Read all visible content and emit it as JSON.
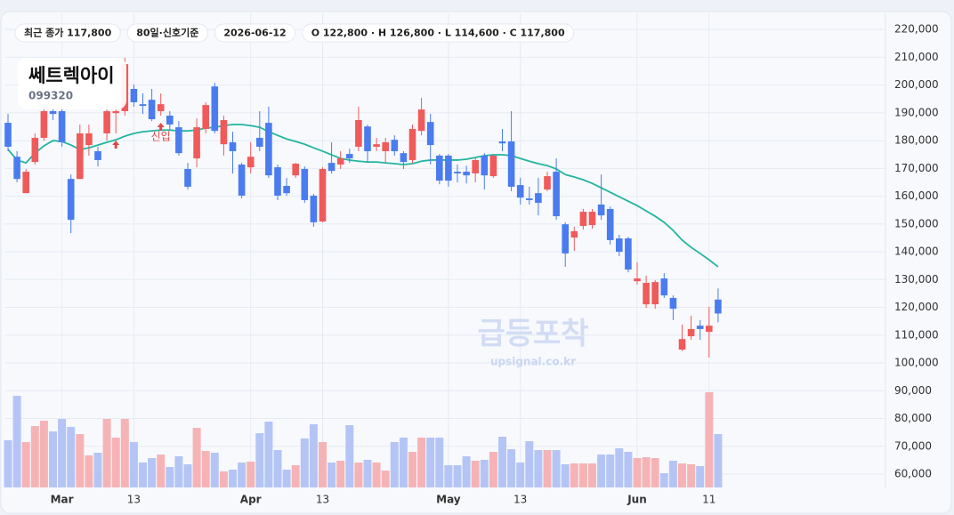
{
  "chart_data": {
    "type": "candlestick",
    "title": "쎄트렉아이",
    "subtitle": "099320",
    "badges": [
      "최근 종가 117,800",
      "80일·신호기준",
      "2026-06-12",
      "O 122,800 · H 126,800 · L 114,600 · C 117,800"
    ],
    "watermark": "급등포착",
    "watermark_sub": "upsignal.co.kr",
    "up_color": "#f05a5a",
    "down_color": "#4a7cf0",
    "up_volume_color": "#f6b3b6",
    "down_volume_color": "#b4c5f5",
    "ma_color": "#22b5a0",
    "grid": true,
    "annotations": [
      {
        "index": 17,
        "text": "신입"
      }
    ],
    "signals": [
      12,
      17
    ],
    "ylim": [
      55200,
      225800
    ],
    "yticks": [
      {
        "value": 60000,
        "label": "60,000"
      },
      {
        "value": 70000,
        "label": "70,000"
      },
      {
        "value": 80000,
        "label": "80,000"
      },
      {
        "value": 90000,
        "label": "90,000"
      },
      {
        "value": 100000,
        "label": "100,000"
      },
      {
        "value": 110000,
        "label": "110,000"
      },
      {
        "value": 120000,
        "label": "120,000"
      },
      {
        "value": 130000,
        "label": "130,000"
      },
      {
        "value": 140000,
        "label": "140,000"
      },
      {
        "value": 150000,
        "label": "150,000"
      },
      {
        "value": 160000,
        "label": "160,000"
      },
      {
        "value": 170000,
        "label": "170,000"
      },
      {
        "value": 180000,
        "label": "180,000"
      },
      {
        "value": 190000,
        "label": "190,000"
      },
      {
        "value": 200000,
        "label": "200,000"
      },
      {
        "value": 210000,
        "label": "210,000"
      },
      {
        "value": 220000,
        "label": "220,000"
      }
    ],
    "categories": [
      null,
      null,
      null,
      null,
      null,
      null,
      "Mar",
      null,
      null,
      null,
      null,
      null,
      null,
      null,
      "13",
      null,
      null,
      null,
      null,
      null,
      null,
      null,
      null,
      null,
      null,
      null,
      null,
      "Apr",
      null,
      null,
      null,
      null,
      null,
      null,
      null,
      "13",
      null,
      null,
      null,
      null,
      null,
      null,
      null,
      null,
      null,
      null,
      null,
      null,
      null,
      "May",
      null,
      null,
      null,
      null,
      null,
      null,
      null,
      "13",
      null,
      null,
      null,
      null,
      null,
      null,
      null,
      null,
      null,
      null,
      null,
      null,
      "Jun",
      null,
      null,
      null,
      null,
      null,
      null,
      null,
      "11",
      null
    ],
    "open": [
      186400,
      174200,
      161100,
      172300,
      181000,
      190600,
      190600,
      166200,
      166200,
      178400,
      176200,
      182600,
      189900,
      190600,
      198600,
      193100,
      194700,
      190600,
      189000,
      184800,
      169800,
      173600,
      184200,
      199500,
      178700,
      179400,
      171400,
      170400,
      181000,
      186400,
      170400,
      163700,
      167500,
      169800,
      160200,
      150900,
      172000,
      171400,
      175200,
      177800,
      185100,
      177800,
      176200,
      180300,
      175500,
      173000,
      183500,
      186700,
      174600,
      174600,
      168800,
      168800,
      168200,
      174600,
      167200,
      179700,
      179700,
      164000,
      159200,
      161100,
      162400,
      168800,
      149900,
      145100,
      149300,
      149600,
      157000,
      155400,
      144800,
      144800,
      129400,
      121100,
      121100,
      130400,
      123400,
      104800,
      109600,
      113400,
      111200,
      122800
    ],
    "high": [
      189600,
      176200,
      169800,
      182600,
      192200,
      192200,
      192200,
      167800,
      185800,
      185800,
      177800,
      193800,
      192200,
      209800,
      200200,
      197000,
      198600,
      197000,
      190600,
      187000,
      172000,
      188000,
      193800,
      200800,
      189000,
      183200,
      172000,
      179400,
      190600,
      192200,
      171400,
      166600,
      172000,
      170700,
      160800,
      170400,
      179400,
      176200,
      177100,
      192200,
      185800,
      181000,
      181000,
      181900,
      176200,
      185800,
      195400,
      189600,
      175200,
      175200,
      171400,
      171000,
      173900,
      175500,
      175200,
      184200,
      190600,
      166600,
      163400,
      166600,
      168800,
      173600,
      150600,
      149000,
      155400,
      155400,
      167800,
      156300,
      146100,
      145400,
      136200,
      131400,
      129800,
      132300,
      124300,
      113800,
      117000,
      115400,
      120200,
      126800
    ],
    "low": [
      176200,
      165000,
      161100,
      171400,
      180000,
      187400,
      177800,
      146700,
      166200,
      174600,
      170700,
      180000,
      182600,
      189000,
      192200,
      189600,
      187000,
      189000,
      183500,
      174600,
      162400,
      170400,
      182600,
      182600,
      174600,
      168200,
      159200,
      168200,
      176200,
      166600,
      158600,
      160200,
      166600,
      157600,
      149000,
      150600,
      168200,
      169800,
      172000,
      176200,
      172000,
      176200,
      172000,
      174600,
      169800,
      172000,
      181900,
      171400,
      164300,
      163400,
      165000,
      164600,
      165000,
      162400,
      166600,
      176200,
      161800,
      157000,
      157000,
      153100,
      161800,
      151500,
      134600,
      140300,
      148000,
      148300,
      151500,
      142600,
      138400,
      132600,
      128200,
      119800,
      119500,
      123400,
      115400,
      104200,
      108300,
      108300,
      101900,
      114600
    ],
    "close": [
      177800,
      166200,
      168800,
      181000,
      190600,
      189600,
      179400,
      151500,
      182600,
      182600,
      173000,
      190600,
      190600,
      207500,
      193800,
      192500,
      187700,
      193100,
      185800,
      175500,
      163400,
      184800,
      192800,
      183500,
      187400,
      176200,
      160200,
      174200,
      177800,
      167500,
      160200,
      161100,
      171700,
      158600,
      150600,
      169800,
      169100,
      173600,
      173600,
      187400,
      176200,
      178700,
      179400,
      176200,
      172300,
      184200,
      191200,
      178400,
      165600,
      165600,
      168200,
      167500,
      173000,
      167500,
      174600,
      179000,
      163400,
      159500,
      158600,
      157600,
      167200,
      152800,
      139400,
      147400,
      154400,
      154400,
      153100,
      144200,
      140000,
      133600,
      130400,
      128800,
      129100,
      124300,
      119500,
      108600,
      112200,
      112200,
      113400,
      117800
    ],
    "volume": [
      53,
      103,
      51,
      69,
      75,
      63,
      77,
      68,
      60,
      36,
      39,
      77,
      56,
      77,
      51,
      28,
      33,
      37,
      23,
      35,
      26,
      67,
      41,
      39,
      18,
      20,
      28,
      29,
      61,
      74,
      42,
      20,
      25,
      55,
      71,
      51,
      28,
      30,
      70,
      28,
      31,
      28,
      19,
      51,
      56,
      40,
      56,
      56,
      56,
      25,
      25,
      35,
      30,
      31,
      40,
      57,
      43,
      28,
      52,
      42,
      42,
      42,
      26,
      27,
      27,
      27,
      37,
      37,
      44,
      40,
      33,
      34,
      33,
      16,
      30,
      27,
      26,
      24,
      107,
      60
    ],
    "ma": [
      176800,
      173000,
      172000,
      175500,
      178100,
      180000,
      179700,
      178400,
      176800,
      177400,
      178400,
      179400,
      180300,
      181600,
      182600,
      183200,
      183500,
      183800,
      183800,
      183500,
      183500,
      183800,
      184500,
      184800,
      185400,
      185800,
      185800,
      185400,
      184800,
      183200,
      181900,
      180600,
      179700,
      178700,
      177400,
      176200,
      174900,
      173600,
      173000,
      172600,
      172300,
      172300,
      172000,
      171700,
      171400,
      171700,
      172600,
      173000,
      173000,
      173000,
      173000,
      173300,
      173900,
      174600,
      174900,
      174900,
      174600,
      173600,
      172600,
      171700,
      171000,
      169800,
      167800,
      166900,
      165900,
      164600,
      163000,
      161400,
      159800,
      158200,
      156600,
      154700,
      152800,
      150600,
      147700,
      144200,
      141600,
      139400,
      137100,
      134600
    ]
  }
}
